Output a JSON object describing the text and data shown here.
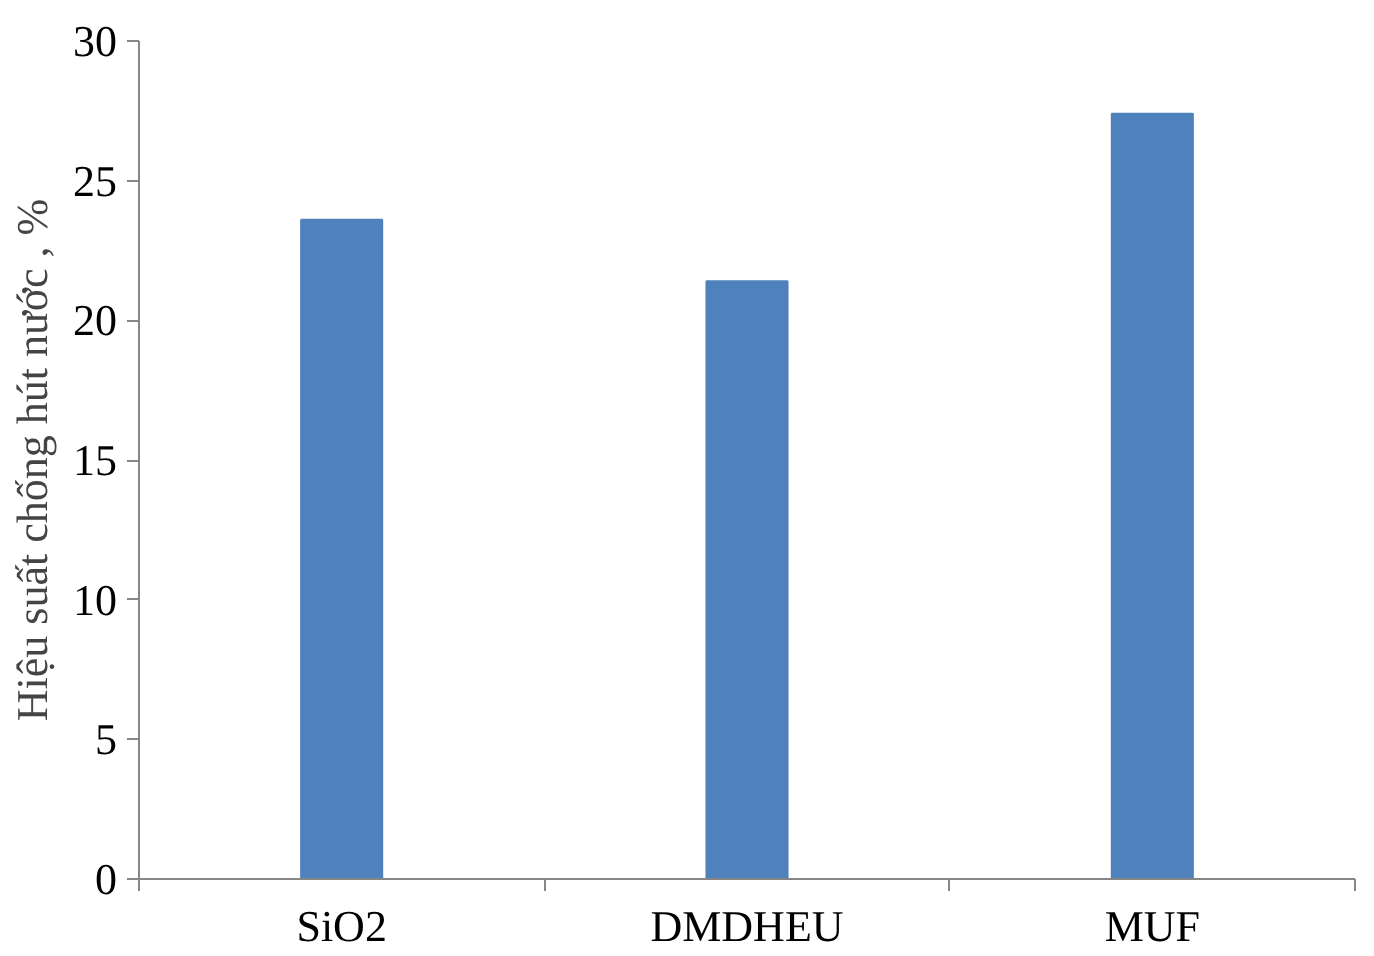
{
  "chart_data": {
    "type": "bar",
    "ylabel": "Hiệu suất chống hút nước , %",
    "categories": [
      "SiO2",
      "DMDHEU",
      "MUF"
    ],
    "values": [
      23.6,
      21.4,
      27.4
    ],
    "color": "#4f81bd",
    "ylim": [
      0,
      30
    ],
    "yticks": [
      0,
      5,
      10,
      15,
      20,
      25,
      30
    ],
    "grid": false
  }
}
